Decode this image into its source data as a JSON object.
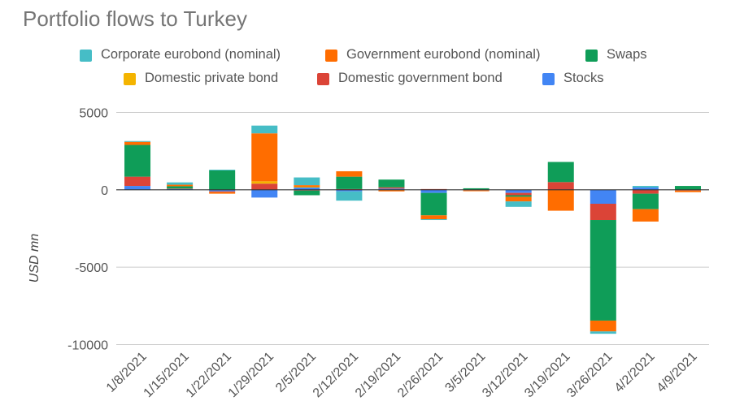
{
  "chart_data": {
    "type": "stacked-bar",
    "title": "Portfolio flows to Turkey",
    "xlabel": "",
    "ylabel": "USD mn",
    "ylim": [
      -10000,
      5000
    ],
    "yticks": [
      5000,
      0,
      -5000,
      -10000
    ],
    "yticklabels": [
      "5000",
      "0",
      "-5000",
      "-10000"
    ],
    "grid": true,
    "legend_position": "top",
    "categories": [
      "1/8/2021",
      "1/15/2021",
      "1/22/2021",
      "1/29/2021",
      "2/5/2021",
      "2/12/2021",
      "2/19/2021",
      "2/26/2021",
      "3/5/2021",
      "3/12/2021",
      "3/19/2021",
      "3/26/2021",
      "4/2/2021",
      "4/9/2021"
    ],
    "series": [
      {
        "name": "Stocks",
        "color": "#4285f4",
        "values": [
          250,
          50,
          -100,
          -500,
          150,
          -100,
          80,
          -200,
          -20,
          -200,
          0,
          -900,
          150,
          0
        ]
      },
      {
        "name": "Domestic government bond",
        "color": "#db4437",
        "values": [
          600,
          30,
          -50,
          400,
          -50,
          50,
          80,
          50,
          -20,
          -150,
          500,
          -1050,
          -250,
          -50
        ]
      },
      {
        "name": "Domestic private bond",
        "color": "#f4b400",
        "values": [
          0,
          0,
          0,
          150,
          50,
          0,
          0,
          0,
          0,
          0,
          0,
          0,
          0,
          0
        ]
      },
      {
        "name": "Swaps",
        "color": "#0f9d58",
        "values": [
          2050,
          150,
          1250,
          0,
          -300,
          800,
          500,
          -1450,
          100,
          -100,
          1300,
          -6500,
          -1000,
          250
        ]
      },
      {
        "name": "Government eurobond (nominal)",
        "color": "#ff6d00",
        "values": [
          200,
          100,
          -100,
          3100,
          100,
          350,
          -100,
          -250,
          -50,
          -300,
          -1350,
          -700,
          -800,
          -100
        ]
      },
      {
        "name": "Corporate eurobond (nominal)",
        "color": "#46bdc6",
        "values": [
          50,
          150,
          50,
          500,
          500,
          -600,
          0,
          -50,
          0,
          -350,
          0,
          -150,
          100,
          0
        ]
      }
    ],
    "legend": [
      [
        "Corporate eurobond (nominal)",
        "Government eurobond (nominal)",
        "Swaps"
      ],
      [
        "Domestic private bond",
        "Domestic government bond",
        "Stocks"
      ]
    ]
  },
  "colors": {
    "Corporate eurobond (nominal)": "#46bdc6",
    "Government eurobond (nominal)": "#ff6d00",
    "Swaps": "#0f9d58",
    "Domestic private bond": "#f4b400",
    "Domestic government bond": "#db4437",
    "Stocks": "#4285f4"
  }
}
